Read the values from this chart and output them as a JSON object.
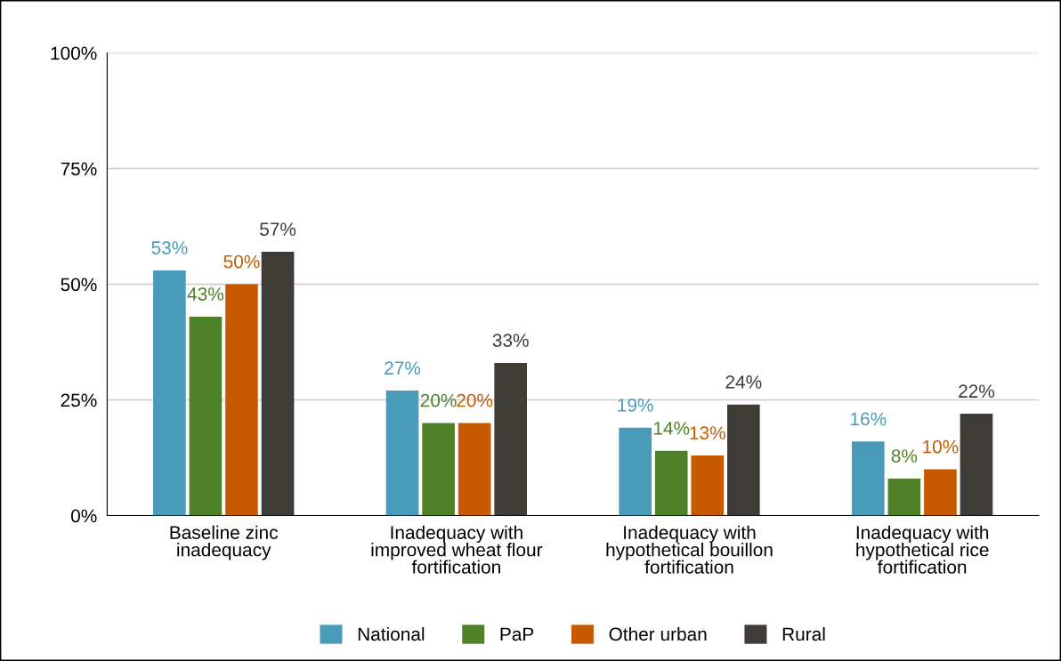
{
  "chart_data": {
    "type": "bar",
    "categories": [
      "Baseline zinc\ninadequacy",
      "Inadequacy with\nimproved wheat flour\nfortification",
      "Inadequacy with\nhypothetical bouillon\nfortification",
      "Inadequacy with\nhypothetical rice\nfortification"
    ],
    "series": [
      {
        "name": "National",
        "color": "#4a9bba",
        "values": [
          53,
          27,
          19,
          16
        ]
      },
      {
        "name": "PaP",
        "color": "#4e8128",
        "values": [
          43,
          20,
          14,
          8
        ]
      },
      {
        "name": "Other urban",
        "color": "#c55a00",
        "values": [
          50,
          20,
          13,
          10
        ]
      },
      {
        "name": "Rural",
        "color": "#3f3b36",
        "values": [
          57,
          33,
          24,
          22
        ]
      }
    ],
    "ylim": [
      0,
      100
    ],
    "yticks": [
      {
        "value": 0,
        "label": "0%"
      },
      {
        "value": 25,
        "label": "25%"
      },
      {
        "value": 50,
        "label": "50%"
      },
      {
        "value": 75,
        "label": "75%"
      },
      {
        "value": 100,
        "label": "100%"
      }
    ],
    "grid": "y",
    "legend": "bottom",
    "value_labels": [
      [
        "53%",
        "27%",
        "19%",
        "16%"
      ],
      [
        "43%",
        "20%",
        "14%",
        "8%"
      ],
      [
        "50%",
        "20%",
        "13%",
        "10%"
      ],
      [
        "57%",
        "33%",
        "24%",
        "22%"
      ]
    ]
  }
}
